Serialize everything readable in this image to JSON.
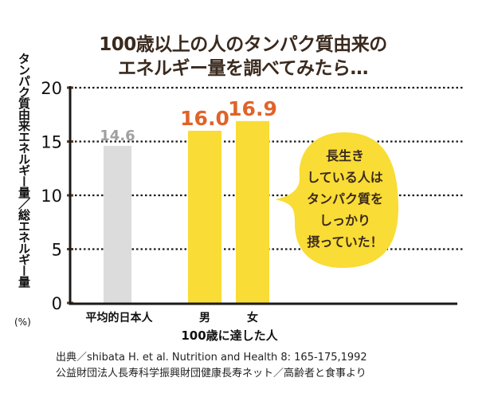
{
  "chart_data": {
    "type": "bar",
    "title": [
      "100歳以上の人のタンパク質由来の",
      "エネルギー量を調べてみたら…"
    ],
    "ylabel": "タンパク質由来エネルギー量／総エネルギー量",
    "yunit": "(%)",
    "ylim": [
      0,
      20
    ],
    "yticks": [
      0,
      5,
      10,
      15,
      20
    ],
    "grid": "dotted horizontal",
    "categories": [
      "平均的日本人",
      "男",
      "女"
    ],
    "values": [
      14.6,
      16.0,
      16.9
    ],
    "value_labels": [
      "14.6",
      "16.0",
      "16.9"
    ],
    "group_label": "100歳に達した人",
    "colors": {
      "average": "#dcdcdc",
      "centenarian": "#f9dc35",
      "label_average": "#a0a0a0",
      "label_centenarian": "#e0632a",
      "axis": "#1a1a1a",
      "tick": "#5a3a22"
    },
    "annotation": [
      "長生き",
      "している人は",
      "タンパク質を",
      "しっかり",
      "摂っていた！"
    ]
  },
  "source": [
    "出典／shibata H. et al. Nutrition and Health 8: 165-175,1992",
    "公益財団法人長寿科学振興財団健康長寿ネット／高齢者と食事より"
  ]
}
